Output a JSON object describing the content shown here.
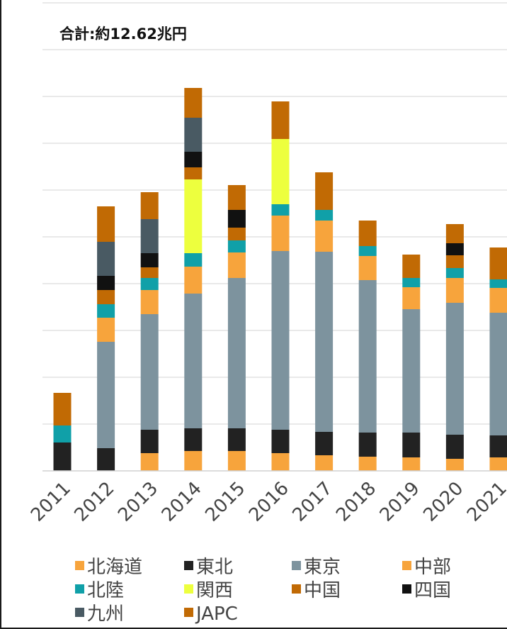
{
  "chart_data": {
    "type": "bar",
    "stacked": true,
    "annotation": "合計:約12.62兆円",
    "categories": [
      "2011",
      "2012",
      "2013",
      "2014",
      "2015",
      "2016",
      "2017",
      "2018",
      "2019",
      "2020",
      "2021"
    ],
    "y_grid": true,
    "legend_position": "bottom",
    "series": [
      {
        "name": "北海道",
        "color": "#f7a43c",
        "values": [
          0,
          0,
          25,
          28,
          28,
          25,
          22,
          20,
          19,
          17,
          19
        ]
      },
      {
        "name": "東北",
        "color": "#222222",
        "values": [
          40,
          32,
          33,
          32,
          32,
          33,
          33,
          34,
          35,
          34,
          31
        ]
      },
      {
        "name": "東京",
        "color": "#7d939e",
        "values": [
          0,
          150,
          163,
          190,
          212,
          252,
          254,
          215,
          174,
          186,
          173
        ]
      },
      {
        "name": "中部",
        "color": "#f7a43c",
        "values": [
          0,
          34,
          34,
          38,
          36,
          50,
          44,
          34,
          31,
          35,
          35
        ]
      },
      {
        "name": "北陸",
        "color": "#10a0a8",
        "values": [
          24,
          19,
          17,
          19,
          17,
          16,
          15,
          14,
          13,
          14,
          12
        ]
      },
      {
        "name": "関西",
        "color": "#edff3e",
        "values": [
          0,
          0,
          0,
          104,
          0,
          92,
          0,
          0,
          0,
          0,
          0
        ]
      },
      {
        "name": "中国",
        "color": "#c16a04",
        "values": [
          0,
          20,
          15,
          17,
          18,
          0,
          0,
          0,
          0,
          18,
          0
        ]
      },
      {
        "name": "四国",
        "color": "#111111",
        "values": [
          0,
          20,
          20,
          22,
          25,
          0,
          0,
          0,
          0,
          17,
          0
        ]
      },
      {
        "name": "九州",
        "color": "#495a63",
        "values": [
          0,
          48,
          48,
          48,
          0,
          0,
          0,
          0,
          0,
          0,
          0
        ]
      },
      {
        "name": "JAPC",
        "color": "#c16a04",
        "values": [
          46,
          50,
          38,
          42,
          35,
          53,
          53,
          36,
          33,
          27,
          45
        ]
      }
    ]
  }
}
